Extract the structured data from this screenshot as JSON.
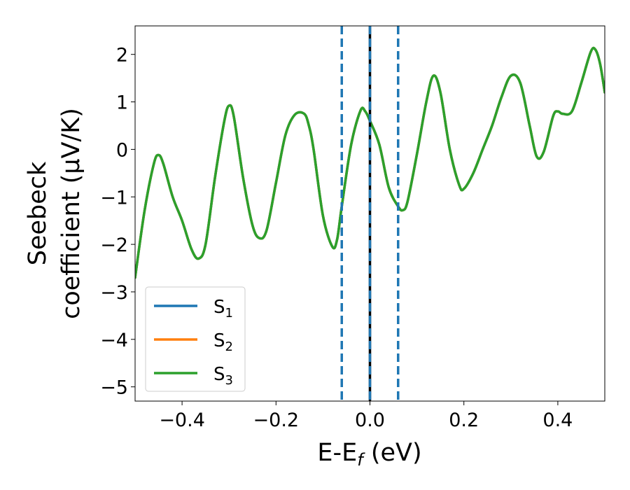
{
  "chart_data": {
    "type": "line",
    "title": "",
    "xlabel": "E-E",
    "xlabel_sub": "f",
    "xlabel_suffix": " (eV)",
    "ylabel_line1": "Seebeck",
    "ylabel_line2": "coefficient  (μV/K)",
    "xlim": [
      -0.5,
      0.5
    ],
    "ylim": [
      -5.3,
      2.6
    ],
    "x_ticks": [
      -0.4,
      -0.2,
      0.0,
      0.2,
      0.4
    ],
    "x_tick_labels": [
      "−0.4",
      "−0.2",
      "0.0",
      "0.2",
      "0.4"
    ],
    "y_ticks": [
      -5,
      -4,
      -3,
      -2,
      -1,
      0,
      1,
      2
    ],
    "y_tick_labels": [
      "−5",
      "−4",
      "−3",
      "−2",
      "−1",
      "0",
      "1",
      "2"
    ],
    "grid": false,
    "legend_position": "lower-left",
    "series": [
      {
        "name": "S",
        "sub": "1",
        "color": "#1f77b4"
      },
      {
        "name": "S",
        "sub": "2",
        "color": "#ff7f0e"
      },
      {
        "name": "S",
        "sub": "3",
        "color": "#2ca02c"
      }
    ],
    "curve": {
      "x": [
        -0.5,
        -0.48,
        -0.46,
        -0.45,
        -0.44,
        -0.42,
        -0.4,
        -0.38,
        -0.365,
        -0.35,
        -0.33,
        -0.31,
        -0.3,
        -0.29,
        -0.27,
        -0.25,
        -0.235,
        -0.22,
        -0.2,
        -0.18,
        -0.16,
        -0.14,
        -0.13,
        -0.12,
        -0.1,
        -0.08,
        -0.07,
        -0.06,
        -0.04,
        -0.02,
        -0.01,
        0.0,
        0.02,
        0.04,
        0.06,
        0.07,
        0.08,
        0.1,
        0.12,
        0.135,
        0.15,
        0.17,
        0.19,
        0.2,
        0.22,
        0.24,
        0.26,
        0.28,
        0.3,
        0.32,
        0.34,
        0.355,
        0.37,
        0.39,
        0.4,
        0.41,
        0.43,
        0.45,
        0.47,
        0.48,
        0.49,
        0.5
      ],
      "y": [
        -2.7,
        -1.3,
        -0.3,
        -0.12,
        -0.3,
        -1.0,
        -1.5,
        -2.1,
        -2.3,
        -2.0,
        -0.6,
        0.6,
        0.92,
        0.7,
        -0.6,
        -1.6,
        -1.87,
        -1.7,
        -0.7,
        0.3,
        0.73,
        0.75,
        0.5,
        0.0,
        -1.4,
        -2.05,
        -1.9,
        -1.2,
        0.1,
        0.82,
        0.8,
        0.6,
        0.1,
        -0.8,
        -1.2,
        -1.28,
        -1.1,
        -0.1,
        1.0,
        1.55,
        1.2,
        0.0,
        -0.75,
        -0.83,
        -0.5,
        0.0,
        0.5,
        1.1,
        1.55,
        1.4,
        0.5,
        -0.15,
        -0.05,
        0.7,
        0.8,
        0.75,
        0.8,
        1.4,
        2.05,
        2.1,
        1.8,
        1.2
      ]
    },
    "vlines": [
      {
        "x": -0.06,
        "style": "dashed",
        "color": "#1f77b4"
      },
      {
        "x": 0.06,
        "style": "dashed",
        "color": "#1f77b4"
      },
      {
        "x": 0.0,
        "style": "solid",
        "color": "#000000"
      },
      {
        "x": 0.0,
        "style": "dashed",
        "color": "#1f77b4"
      }
    ]
  }
}
